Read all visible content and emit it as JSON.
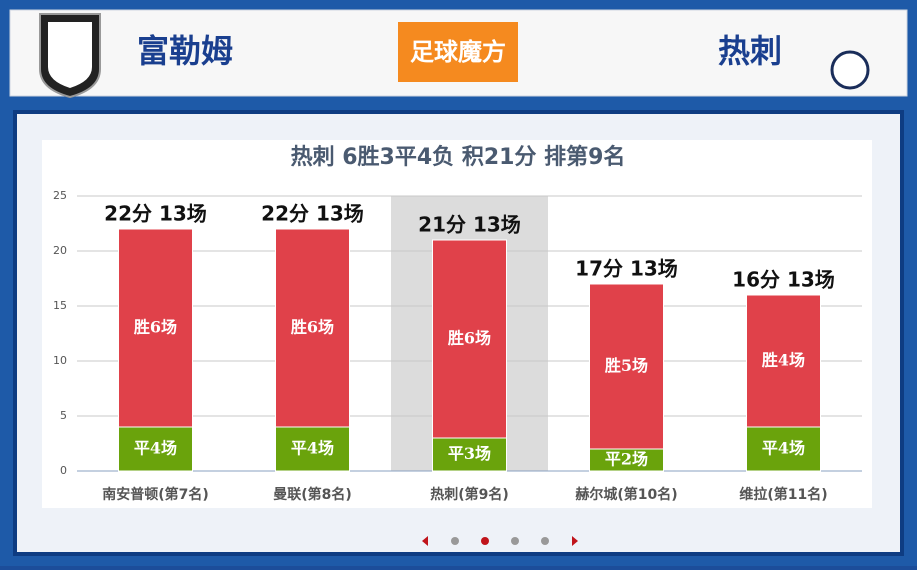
{
  "header": {
    "home_team": "富勒姆",
    "away_team": "热刺",
    "brand": "足球魔方"
  },
  "chart_data": {
    "type": "stacked-bar",
    "title": "热刺 6胜3平4负 积21分 排第9名",
    "categories": [
      "南安普顿(第7名)",
      "曼联(第8名)",
      "热刺(第9名)",
      "赫尔城(第10名)",
      "维拉(第11名)"
    ],
    "series": [
      {
        "name": "平",
        "color": "#6aa30c",
        "values": [
          4,
          4,
          3,
          2,
          4
        ],
        "value_labels": [
          "平4场",
          "平4场",
          "平3场",
          "平2场",
          "平4场"
        ]
      },
      {
        "name": "胜",
        "color": "#e0414a",
        "values": [
          18,
          18,
          18,
          15,
          12
        ],
        "value_labels": [
          "胜6场",
          "胜6场",
          "胜6场",
          "胜5场",
          "胜4场"
        ]
      }
    ],
    "total_labels": [
      "22分 13场",
      "22分 13场",
      "21分 13场",
      "17分 13场",
      "16分 13场"
    ],
    "highlight": 2,
    "ylim": [
      0,
      25
    ],
    "yticks": [
      0,
      5,
      10,
      15,
      20,
      25
    ],
    "grid": true
  }
}
